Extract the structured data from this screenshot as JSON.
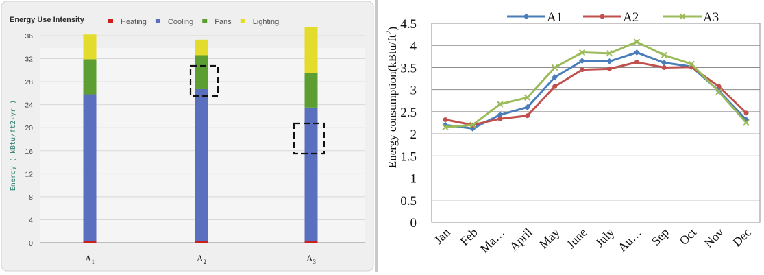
{
  "left_chart": {
    "title": "Energy Use Intensity",
    "ylabel": "Energy ( kBtu/ft2-yr )",
    "legend": [
      {
        "name": "Heating",
        "color": "#cc1f1f"
      },
      {
        "name": "Cooling",
        "color": "#5b6fbf"
      },
      {
        "name": "Fans",
        "color": "#5c9e31"
      },
      {
        "name": "Lighting",
        "color": "#e3dc2c"
      }
    ],
    "x_labels": [
      {
        "base": "A",
        "sub": "1"
      },
      {
        "base": "A",
        "sub": "2"
      },
      {
        "base": "A",
        "sub": "3"
      }
    ]
  },
  "right_chart": {
    "ylabel": "Energy consumption(kBtu/ft",
    "ylabel_sup": "2",
    "ylabel_close": ")"
  },
  "chart_data": [
    {
      "type": "bar",
      "stacked": true,
      "title": "Energy Use Intensity",
      "ylabel": "Energy ( kBtu/ft2-yr )",
      "categories": [
        "A1",
        "A2",
        "A3"
      ],
      "series": [
        {
          "name": "Heating",
          "color": "#cc1f1f",
          "values": [
            0.3,
            0.3,
            0.3
          ]
        },
        {
          "name": "Cooling",
          "color": "#5b6fbf",
          "values": [
            25.5,
            26.4,
            23.2
          ]
        },
        {
          "name": "Fans",
          "color": "#5c9e31",
          "values": [
            6.1,
            5.9,
            6.0
          ]
        },
        {
          "name": "Lighting",
          "color": "#e3dc2c",
          "values": [
            4.3,
            2.7,
            8.0
          ]
        }
      ],
      "ylim": [
        0,
        37
      ],
      "yticks": [
        0,
        4,
        8,
        12,
        16,
        20,
        24,
        28,
        32,
        36
      ],
      "grid": true,
      "legend_position": "top"
    },
    {
      "type": "line",
      "categories": [
        "Jan",
        "Feb",
        "Ma…",
        "April",
        "May",
        "June",
        "July",
        "Au…",
        "Sep",
        "Oct",
        "Nov",
        "Dec"
      ],
      "series": [
        {
          "name": "A1",
          "color": "#4a7ebb",
          "marker": "diamond",
          "values": [
            2.2,
            2.12,
            2.43,
            2.6,
            3.28,
            3.65,
            3.64,
            3.84,
            3.61,
            3.52,
            2.97,
            2.32
          ]
        },
        {
          "name": "A2",
          "color": "#c0504d",
          "marker": "circle",
          "values": [
            2.32,
            2.2,
            2.34,
            2.41,
            3.07,
            3.45,
            3.47,
            3.62,
            3.5,
            3.51,
            3.07,
            2.47
          ]
        },
        {
          "name": "A3",
          "color": "#9bbb59",
          "marker": "x",
          "values": [
            2.15,
            2.2,
            2.67,
            2.82,
            3.5,
            3.84,
            3.82,
            4.08,
            3.78,
            3.58,
            2.95,
            2.25
          ]
        }
      ],
      "ylim": [
        0,
        4.5
      ],
      "yticks": [
        "0",
        "0.5",
        "1",
        "1.5",
        "2",
        "2.5",
        "3",
        "3.5",
        "4",
        "4.5"
      ],
      "grid": true,
      "legend_position": "top"
    }
  ]
}
